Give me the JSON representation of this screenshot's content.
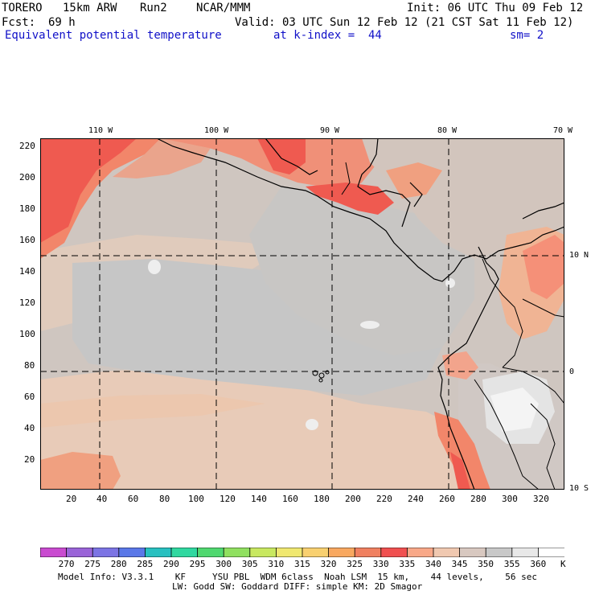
{
  "header": {
    "model": "TORERO",
    "resolution": "15km ARW",
    "run": "Run2",
    "org": "NCAR/MMM",
    "init": "Init: 06 UTC Thu 09 Feb 12",
    "fcst_label": "Fcst:",
    "fcst_value": "69 h",
    "valid": "Valid: 03 UTC Sun 12 Feb 12 (21 CST Sat 11 Feb 12)",
    "field": "Equivalent potential temperature",
    "level": "at k-index =  44",
    "smoothing": "sm= 2"
  },
  "map": {
    "lon_labels": [
      "110 W",
      "100 W",
      "90 W",
      "80 W",
      "70 W"
    ],
    "lat_labels": [
      "10 N",
      "0",
      "10 S"
    ],
    "y_ticks": [
      "220",
      "200",
      "180",
      "160",
      "140",
      "120",
      "100",
      "80",
      "60",
      "40",
      "20"
    ],
    "x_ticks": [
      "20",
      "40",
      "60",
      "80",
      "100",
      "120",
      "140",
      "160",
      "180",
      "200",
      "220",
      "240",
      "260",
      "280",
      "300",
      "320"
    ]
  },
  "colorbar": {
    "labels": [
      "270",
      "275",
      "280",
      "285",
      "290",
      "295",
      "300",
      "305",
      "310",
      "315",
      "320",
      "325",
      "330",
      "335",
      "340",
      "345",
      "350",
      "355",
      "360"
    ],
    "unit": "K",
    "colors": [
      "#c94bd0",
      "#9a64d8",
      "#7c74e4",
      "#5a78e8",
      "#28c0c0",
      "#30d8a0",
      "#50d870",
      "#90e060",
      "#c8e860",
      "#f0e870",
      "#f8d070",
      "#f8a860",
      "#f08060",
      "#f05050",
      "#f8a888",
      "#f0c8b0",
      "#d8c8c0",
      "#c8c8c8",
      "#e8e8e8",
      "#ffffff"
    ]
  },
  "footer": {
    "line1": "Model Info: V3.3.1    KF     YSU PBL  WDM 6class  Noah LSM  15 km,    44 levels,    56 sec",
    "line2": "LW: Godd SW: Goddard DIFF: simple KM: 2D Smagor"
  }
}
